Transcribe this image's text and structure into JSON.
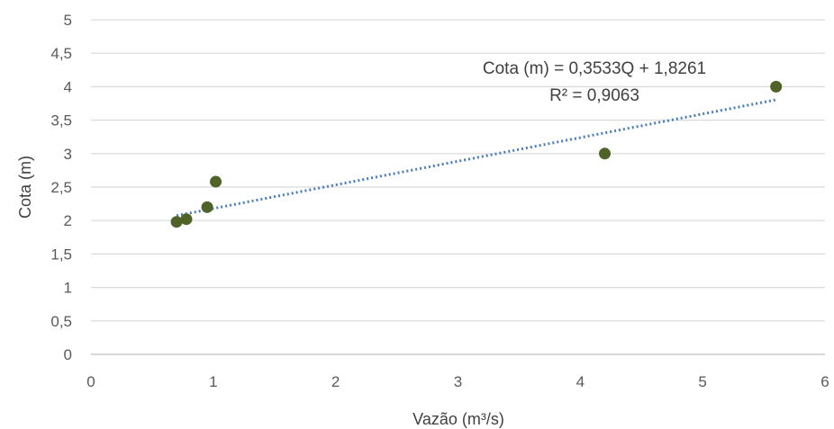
{
  "chart_data": {
    "type": "scatter",
    "title_fragment_top": "",
    "xlabel": "Vazão (m³/s)",
    "ylabel": "Cota (m)",
    "xlim": [
      0,
      6
    ],
    "ylim": [
      0,
      5
    ],
    "x_ticks": [
      0,
      1,
      2,
      3,
      4,
      5,
      6
    ],
    "y_ticks": [
      "0",
      "0,5",
      "1",
      "1,5",
      "2",
      "2,5",
      "3",
      "3,5",
      "4",
      "4,5",
      "5"
    ],
    "y_tick_values": [
      0,
      0.5,
      1,
      1.5,
      2,
      2.5,
      3,
      3.5,
      4,
      4.5,
      5
    ],
    "grid": "horizontal",
    "series": [
      {
        "points": [
          {
            "x": 0.7,
            "y": 1.98
          },
          {
            "x": 0.78,
            "y": 2.02
          },
          {
            "x": 0.95,
            "y": 2.2
          },
          {
            "x": 1.02,
            "y": 2.58
          },
          {
            "x": 4.2,
            "y": 3.0
          },
          {
            "x": 5.6,
            "y": 4.0
          }
        ],
        "color": "#4f6228"
      }
    ],
    "trendline": {
      "type": "linear",
      "slope": 0.3533,
      "intercept": 1.8261,
      "x_range": [
        0.7,
        5.6
      ],
      "color": "#4a7ebb",
      "equation_label": "Cota (m) = 0,3533Q + 1,8261",
      "r2_label": "R² = 0,9063"
    }
  }
}
